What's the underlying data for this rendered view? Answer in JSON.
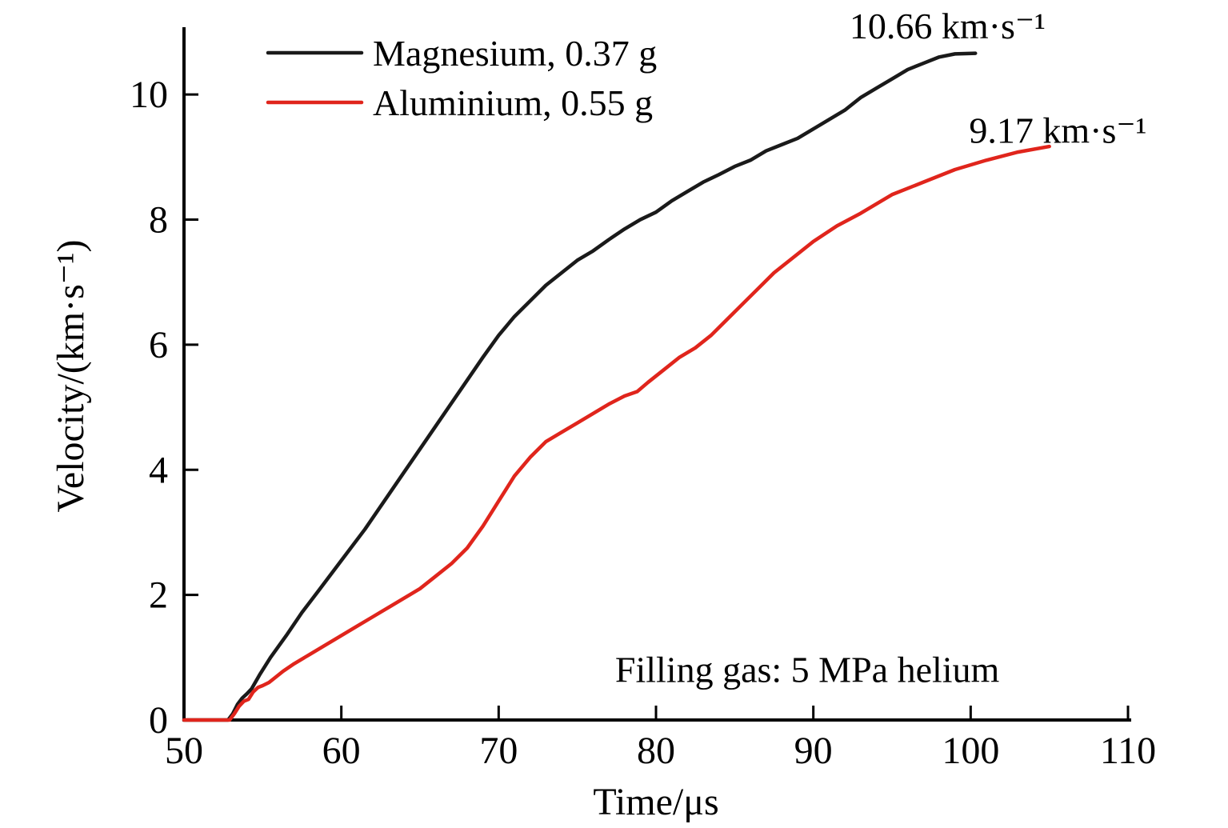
{
  "figure": {
    "background": "#ffffff",
    "axis_color": "#000000",
    "text_color": "#000000"
  },
  "chart_data": {
    "type": "line",
    "title": "",
    "xlabel": "Time/μs",
    "ylabel": "Velocity/(km·s⁻¹)",
    "xlim": [
      50,
      110
    ],
    "ylim": [
      0,
      11
    ],
    "xticks": [
      50,
      60,
      70,
      80,
      90,
      100,
      110
    ],
    "yticks": [
      0,
      2,
      4,
      6,
      8,
      10
    ],
    "grid": false,
    "legend_position": "upper-left",
    "series": [
      {
        "name": "Magnesium, 0.37 g",
        "color": "#1a1a1a",
        "final_velocity_label": "10.66 km·s⁻¹",
        "x": [
          50,
          52.8,
          53.1,
          53.4,
          53.7,
          54.0,
          54.3,
          54.8,
          55.5,
          56.5,
          57.5,
          58.5,
          60,
          61.5,
          63,
          64.5,
          66,
          67.5,
          69,
          70,
          71,
          72,
          73,
          74,
          75,
          76,
          77,
          78,
          79,
          80,
          81,
          82,
          83,
          84,
          85,
          86,
          87,
          88,
          89,
          90,
          91,
          92,
          93,
          94,
          95,
          96,
          97,
          98,
          99,
          100.3
        ],
        "y": [
          0,
          0,
          0.1,
          0.25,
          0.35,
          0.42,
          0.5,
          0.72,
          1.0,
          1.35,
          1.72,
          2.05,
          2.55,
          3.05,
          3.6,
          4.15,
          4.7,
          5.25,
          5.8,
          6.15,
          6.45,
          6.7,
          6.95,
          7.15,
          7.35,
          7.5,
          7.68,
          7.85,
          8.0,
          8.12,
          8.3,
          8.45,
          8.6,
          8.72,
          8.85,
          8.95,
          9.1,
          9.2,
          9.3,
          9.45,
          9.6,
          9.75,
          9.95,
          10.1,
          10.25,
          10.4,
          10.5,
          10.6,
          10.65,
          10.66
        ]
      },
      {
        "name": "Aluminium, 0.55 g",
        "color": "#e0251c",
        "final_velocity_label": "9.17 km·s⁻¹",
        "x": [
          50,
          52.9,
          53.2,
          53.5,
          53.8,
          54.1,
          54.4,
          54.7,
          55.0,
          55.4,
          55.8,
          56.3,
          57,
          58,
          59,
          60,
          61,
          62,
          63,
          64,
          65,
          66,
          67,
          68,
          69,
          70,
          71,
          72,
          73,
          74,
          75,
          76,
          77,
          78,
          78.8,
          79.5,
          80.5,
          81.5,
          82.5,
          83.5,
          84.5,
          85.5,
          86.5,
          87.5,
          88.5,
          90,
          91.5,
          93,
          95,
          97,
          99,
          101,
          103,
          105
        ],
        "y": [
          0,
          0,
          0.1,
          0.22,
          0.3,
          0.33,
          0.45,
          0.52,
          0.55,
          0.6,
          0.68,
          0.78,
          0.9,
          1.05,
          1.2,
          1.35,
          1.5,
          1.65,
          1.8,
          1.95,
          2.1,
          2.3,
          2.5,
          2.75,
          3.1,
          3.5,
          3.9,
          4.2,
          4.45,
          4.6,
          4.75,
          4.9,
          5.05,
          5.18,
          5.25,
          5.4,
          5.6,
          5.8,
          5.95,
          6.15,
          6.4,
          6.65,
          6.9,
          7.15,
          7.35,
          7.65,
          7.9,
          8.1,
          8.4,
          8.6,
          8.8,
          8.95,
          9.08,
          9.17
        ]
      }
    ],
    "annotations": [
      {
        "text": "10.66 km·s⁻¹",
        "x": 92.3,
        "y": 10.9,
        "anchor": "start"
      },
      {
        "text": "9.17 km·s⁻¹",
        "x": 99.9,
        "y": 9.23,
        "anchor": "start"
      },
      {
        "text": "Filling gas: 5 MPa helium",
        "x": 77.4,
        "y": 0.61,
        "anchor": "start"
      }
    ]
  }
}
